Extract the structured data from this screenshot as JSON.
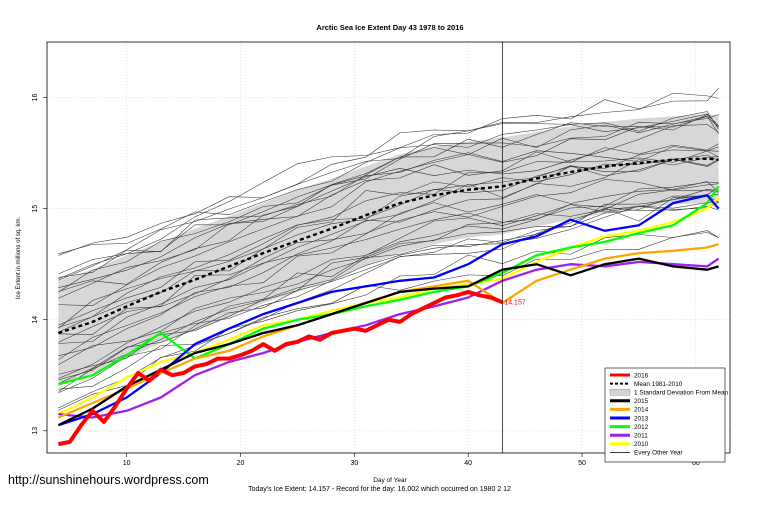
{
  "footer": {
    "url": "http://sunshinehours.wordpress.com",
    "summary": "Today's Ice Extent: 14.157  - Record for the day: 16.002 which occurred on 1980 2 12"
  },
  "chart_data": {
    "type": "line",
    "title": "Arctic Sea Ice Extent Day 43 1978 to 2016",
    "xlabel": "Day of Year",
    "ylabel": "Ice Extent in millions of sq. km.",
    "xlim": [
      3,
      63
    ],
    "ylim": [
      12.8,
      16.5
    ],
    "xticks": [
      10,
      20,
      30,
      40,
      50,
      60
    ],
    "yticks": [
      13,
      14,
      15,
      16
    ],
    "vline_x": 43,
    "current_label": {
      "x": 43,
      "y": 14.157,
      "text": "14.157"
    },
    "legend": [
      {
        "name": "2016",
        "color": "#ff0000",
        "style": "thick"
      },
      {
        "name": "Mean 1981-2010",
        "color": "#000000",
        "style": "dashed"
      },
      {
        "name": "1 Standard Deviation From Mean",
        "color": "#d3d3d3",
        "style": "box"
      },
      {
        "name": "2015",
        "color": "#000000",
        "style": "thick"
      },
      {
        "name": "2014",
        "color": "#ffa500",
        "style": "thick"
      },
      {
        "name": "2013",
        "color": "#0000ff",
        "style": "thick"
      },
      {
        "name": "2012",
        "color": "#00ff00",
        "style": "thick"
      },
      {
        "name": "2011",
        "color": "#a020f0",
        "style": "thick"
      },
      {
        "name": "2010",
        "color": "#ffff00",
        "style": "thick"
      },
      {
        "name": "Every Other Year",
        "color": "#000000",
        "style": "thin"
      }
    ],
    "mean": {
      "x": [
        4,
        7,
        10,
        13,
        16,
        19,
        22,
        25,
        28,
        31,
        34,
        37,
        40,
        43,
        46,
        49,
        52,
        55,
        58,
        61,
        62
      ],
      "y": [
        13.88,
        13.98,
        14.12,
        14.25,
        14.36,
        14.48,
        14.6,
        14.71,
        14.82,
        14.94,
        15.05,
        15.12,
        15.17,
        15.2,
        15.27,
        15.33,
        15.38,
        15.41,
        15.44,
        15.45,
        15.44
      ]
    },
    "std_band": {
      "x": [
        4,
        7,
        10,
        13,
        16,
        19,
        22,
        25,
        28,
        31,
        34,
        37,
        40,
        43,
        46,
        49,
        52,
        55,
        58,
        61,
        62
      ],
      "upper": [
        14.35,
        14.45,
        14.58,
        14.7,
        14.82,
        14.93,
        15.05,
        15.17,
        15.27,
        15.38,
        15.49,
        15.56,
        15.6,
        15.64,
        15.69,
        15.74,
        15.78,
        15.81,
        15.83,
        15.85,
        15.84
      ],
      "lower": [
        13.4,
        13.52,
        13.65,
        13.79,
        13.9,
        14.02,
        14.15,
        14.25,
        14.36,
        14.49,
        14.6,
        14.68,
        14.74,
        14.77,
        14.84,
        14.9,
        14.96,
        15.0,
        15.04,
        15.05,
        15.04
      ]
    },
    "series": [
      {
        "name": "2010",
        "color": "#ffff00",
        "x": [
          4,
          7,
          10,
          13,
          16,
          19,
          22,
          25,
          28,
          31,
          34,
          37,
          40,
          43,
          46,
          49,
          52,
          55,
          58,
          61,
          62
        ],
        "y": [
          13.15,
          13.3,
          13.48,
          13.62,
          13.7,
          13.82,
          13.95,
          14.0,
          14.08,
          14.15,
          14.2,
          14.28,
          14.32,
          14.37,
          14.52,
          14.65,
          14.75,
          14.8,
          14.88,
          15.0,
          15.1
        ]
      },
      {
        "name": "2011",
        "color": "#a020f0",
        "x": [
          4,
          7,
          10,
          13,
          16,
          19,
          22,
          25,
          28,
          31,
          34,
          37,
          40,
          43,
          46,
          49,
          52,
          55,
          58,
          61,
          62
        ],
        "y": [
          13.15,
          13.12,
          13.18,
          13.3,
          13.5,
          13.62,
          13.7,
          13.8,
          13.88,
          13.95,
          14.05,
          14.12,
          14.2,
          14.35,
          14.45,
          14.5,
          14.48,
          14.52,
          14.5,
          14.48,
          14.55
        ]
      },
      {
        "name": "2012",
        "color": "#00ff00",
        "x": [
          4,
          7,
          10,
          13,
          16,
          19,
          22,
          25,
          28,
          31,
          34,
          37,
          40,
          43,
          46,
          49,
          52,
          55,
          58,
          61,
          62
        ],
        "y": [
          13.42,
          13.5,
          13.68,
          13.88,
          13.65,
          13.78,
          13.92,
          14.0,
          14.05,
          14.12,
          14.18,
          14.25,
          14.3,
          14.42,
          14.58,
          14.65,
          14.7,
          14.78,
          14.85,
          15.05,
          15.2
        ]
      },
      {
        "name": "2013",
        "color": "#0000ff",
        "x": [
          4,
          7,
          10,
          13,
          16,
          19,
          22,
          25,
          28,
          31,
          34,
          37,
          40,
          43,
          46,
          49,
          52,
          55,
          58,
          61,
          62
        ],
        "y": [
          13.05,
          13.15,
          13.3,
          13.52,
          13.78,
          13.92,
          14.05,
          14.15,
          14.25,
          14.3,
          14.35,
          14.38,
          14.5,
          14.68,
          14.75,
          14.9,
          14.8,
          14.85,
          15.05,
          15.12,
          15.0
        ]
      },
      {
        "name": "2014",
        "color": "#ffa500",
        "x": [
          4,
          7,
          10,
          13,
          16,
          19,
          22,
          25,
          28,
          31,
          34,
          37,
          40,
          43,
          46,
          49,
          52,
          55,
          58,
          61,
          62
        ],
        "y": [
          13.12,
          13.25,
          13.38,
          13.52,
          13.65,
          13.72,
          13.85,
          13.95,
          14.05,
          14.15,
          14.25,
          14.3,
          14.35,
          14.15,
          14.35,
          14.45,
          14.55,
          14.6,
          14.62,
          14.65,
          14.68
        ]
      },
      {
        "name": "2015",
        "color": "#000000",
        "x": [
          4,
          7,
          10,
          13,
          16,
          19,
          22,
          25,
          28,
          31,
          34,
          37,
          40,
          43,
          46,
          49,
          52,
          55,
          58,
          61,
          62
        ],
        "y": [
          13.05,
          13.2,
          13.4,
          13.55,
          13.7,
          13.78,
          13.88,
          13.95,
          14.05,
          14.15,
          14.25,
          14.28,
          14.3,
          14.45,
          14.5,
          14.4,
          14.5,
          14.55,
          14.48,
          14.45,
          14.48
        ]
      },
      {
        "name": "2016",
        "color": "#ff0000",
        "x": [
          4,
          5,
          6,
          7,
          8,
          9,
          10,
          11,
          12,
          13,
          14,
          15,
          16,
          17,
          18,
          19,
          20,
          21,
          22,
          23,
          24,
          25,
          26,
          27,
          28,
          29,
          30,
          31,
          32,
          33,
          34,
          35,
          36,
          37,
          38,
          39,
          40,
          41,
          42,
          43
        ],
        "y": [
          12.88,
          12.9,
          13.05,
          13.18,
          13.08,
          13.22,
          13.38,
          13.52,
          13.45,
          13.55,
          13.5,
          13.52,
          13.58,
          13.6,
          13.65,
          13.65,
          13.68,
          13.72,
          13.78,
          13.72,
          13.78,
          13.8,
          13.85,
          13.82,
          13.88,
          13.9,
          13.92,
          13.9,
          13.95,
          14.0,
          13.98,
          14.05,
          14.1,
          14.15,
          14.2,
          14.22,
          14.25,
          14.22,
          14.2,
          14.157
        ]
      }
    ]
  }
}
